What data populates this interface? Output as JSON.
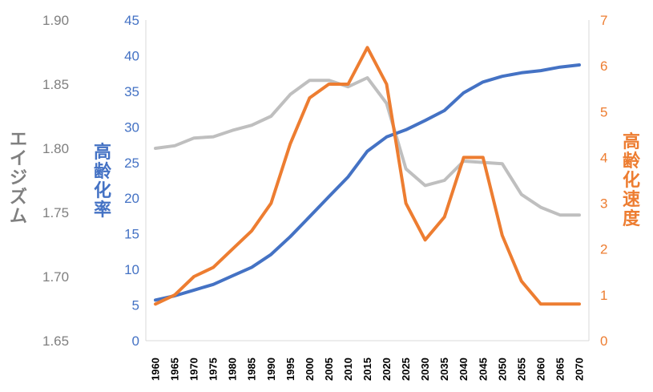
{
  "chart_data": {
    "type": "line",
    "categories": [
      "1960",
      "1965",
      "1970",
      "1975",
      "1980",
      "1985",
      "1990",
      "1995",
      "2000",
      "2005",
      "2010",
      "2015",
      "2020",
      "2025",
      "2030",
      "2035",
      "2040",
      "2045",
      "2050",
      "2055",
      "2060",
      "2065",
      "2070"
    ],
    "axes": {
      "left_outer": {
        "label": "エイジズム",
        "ticks": [
          "1.90",
          "1.85",
          "1.80",
          "1.75",
          "1.70",
          "1.65"
        ],
        "range": [
          1.65,
          1.9
        ],
        "color": "#7f7f7f"
      },
      "left_inner": {
        "label": "高齢化率",
        "ticks": [
          "45",
          "40",
          "35",
          "30",
          "25",
          "20",
          "15",
          "10",
          "5",
          "0"
        ],
        "range": [
          0,
          45
        ],
        "color": "#4472c4"
      },
      "right": {
        "label": "高齢化速度",
        "ticks": [
          "7",
          "6",
          "5",
          "4",
          "3",
          "2",
          "1",
          "0"
        ],
        "range": [
          0,
          7
        ],
        "color": "#ed7d31"
      }
    },
    "series": [
      {
        "axis": "left_outer",
        "color": "#bfbfbf",
        "values": [
          1.8,
          1.802,
          1.808,
          1.809,
          1.814,
          1.818,
          1.825,
          1.842,
          1.853,
          1.853,
          1.848,
          1.855,
          1.835,
          1.784,
          1.771,
          1.775,
          1.79,
          1.789,
          1.788,
          1.764,
          1.754,
          1.748,
          1.748
        ]
      },
      {
        "axis": "left_inner",
        "color": "#4472c4",
        "values": [
          5.7,
          6.3,
          7.1,
          7.9,
          9.1,
          10.3,
          12.1,
          14.6,
          17.4,
          20.2,
          23.0,
          26.6,
          28.6,
          29.6,
          30.9,
          32.3,
          34.8,
          36.3,
          37.1,
          37.6,
          37.9,
          38.4,
          38.7
        ]
      },
      {
        "axis": "right",
        "color": "#ed7d31",
        "values": [
          0.8,
          1.0,
          1.4,
          1.6,
          2.0,
          2.4,
          3.0,
          4.3,
          5.3,
          5.6,
          5.6,
          6.4,
          5.6,
          3.0,
          2.2,
          2.7,
          4.0,
          4.0,
          2.3,
          1.3,
          0.8,
          0.8,
          0.8
        ]
      }
    ],
    "grid": false,
    "legend": "none"
  }
}
